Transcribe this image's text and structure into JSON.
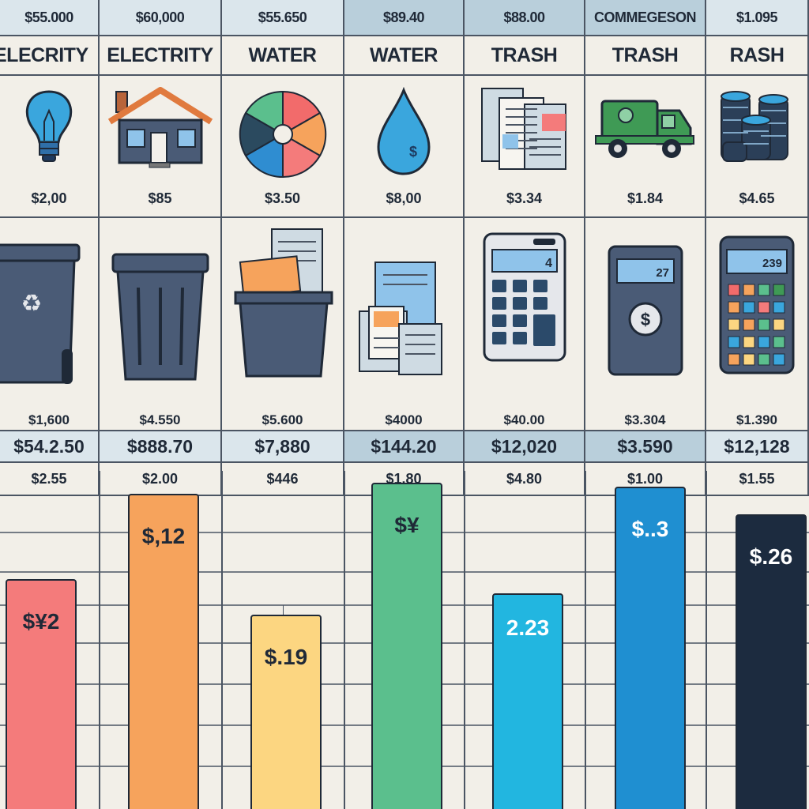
{
  "header_values": [
    "$55.000",
    "$60,000",
    "$55.650",
    "$89.40",
    "$88.00",
    "COMMEGESON",
    "$1.095"
  ],
  "categories": [
    "ELECRITY",
    "ELECTRITY",
    "WATER",
    "WATER",
    "TRASH",
    "TRASH",
    "RASH"
  ],
  "icons_row1": [
    {
      "icon": "lightbulb-icon",
      "price": "$2,00"
    },
    {
      "icon": "house-icon",
      "price": "$85"
    },
    {
      "icon": "pie-chart-icon",
      "price": "$3.50"
    },
    {
      "icon": "water-drop-icon",
      "price": "$8,00"
    },
    {
      "icon": "documents-icon",
      "price": "$3.34"
    },
    {
      "icon": "truck-icon",
      "price": "$1.84"
    },
    {
      "icon": "coins-icon",
      "price": "$4.65"
    }
  ],
  "icons_row2": [
    {
      "icon": "recycle-bin-icon",
      "price": "$1,600"
    },
    {
      "icon": "trash-can-icon",
      "price": "$4.550"
    },
    {
      "icon": "paper-bin-icon",
      "price": "$5.600"
    },
    {
      "icon": "documents-icon",
      "price": "$4000"
    },
    {
      "icon": "calculator-icon",
      "price": "$40.00"
    },
    {
      "icon": "calculator-dollar-icon",
      "price": "$3.304"
    },
    {
      "icon": "calculator-color-icon",
      "price": "$1.390"
    }
  ],
  "calculator_displays": [
    "4",
    "27",
    "239"
  ],
  "totals": [
    "$54.2.50",
    "$888.70",
    "$7,880",
    "$144.20",
    "$12,020",
    "$3.590",
    "$12,128"
  ],
  "subvalues": [
    "$2.55",
    "$2.00",
    "$446",
    "$1.80",
    "$4.80",
    "$1.00",
    "$1.55"
  ],
  "colors": {
    "bar1": "#f47b7b",
    "bar2": "#f6a35c",
    "bar3": "#fcd681",
    "bar4": "#5bbf8d",
    "bar5": "#22b6e0",
    "bar6": "#1f8fd1",
    "bar7": "#1c2b3f",
    "grid": "#4b5563",
    "background": "#f2efe8",
    "header": "#dbe6ec"
  },
  "chart_data": {
    "type": "bar",
    "categories": [
      "ELECRITY",
      "ELECTRITY",
      "WATER",
      "WATER",
      "TRASH",
      "TRASH",
      "RASH"
    ],
    "values": [
      290,
      398,
      245,
      412,
      272,
      407,
      372
    ],
    "labels": [
      "$¥2",
      "$,12",
      "$.19",
      "$¥",
      "2.23",
      "$..3",
      "$.26"
    ],
    "ylim": [
      0,
      428
    ],
    "grid": true
  }
}
